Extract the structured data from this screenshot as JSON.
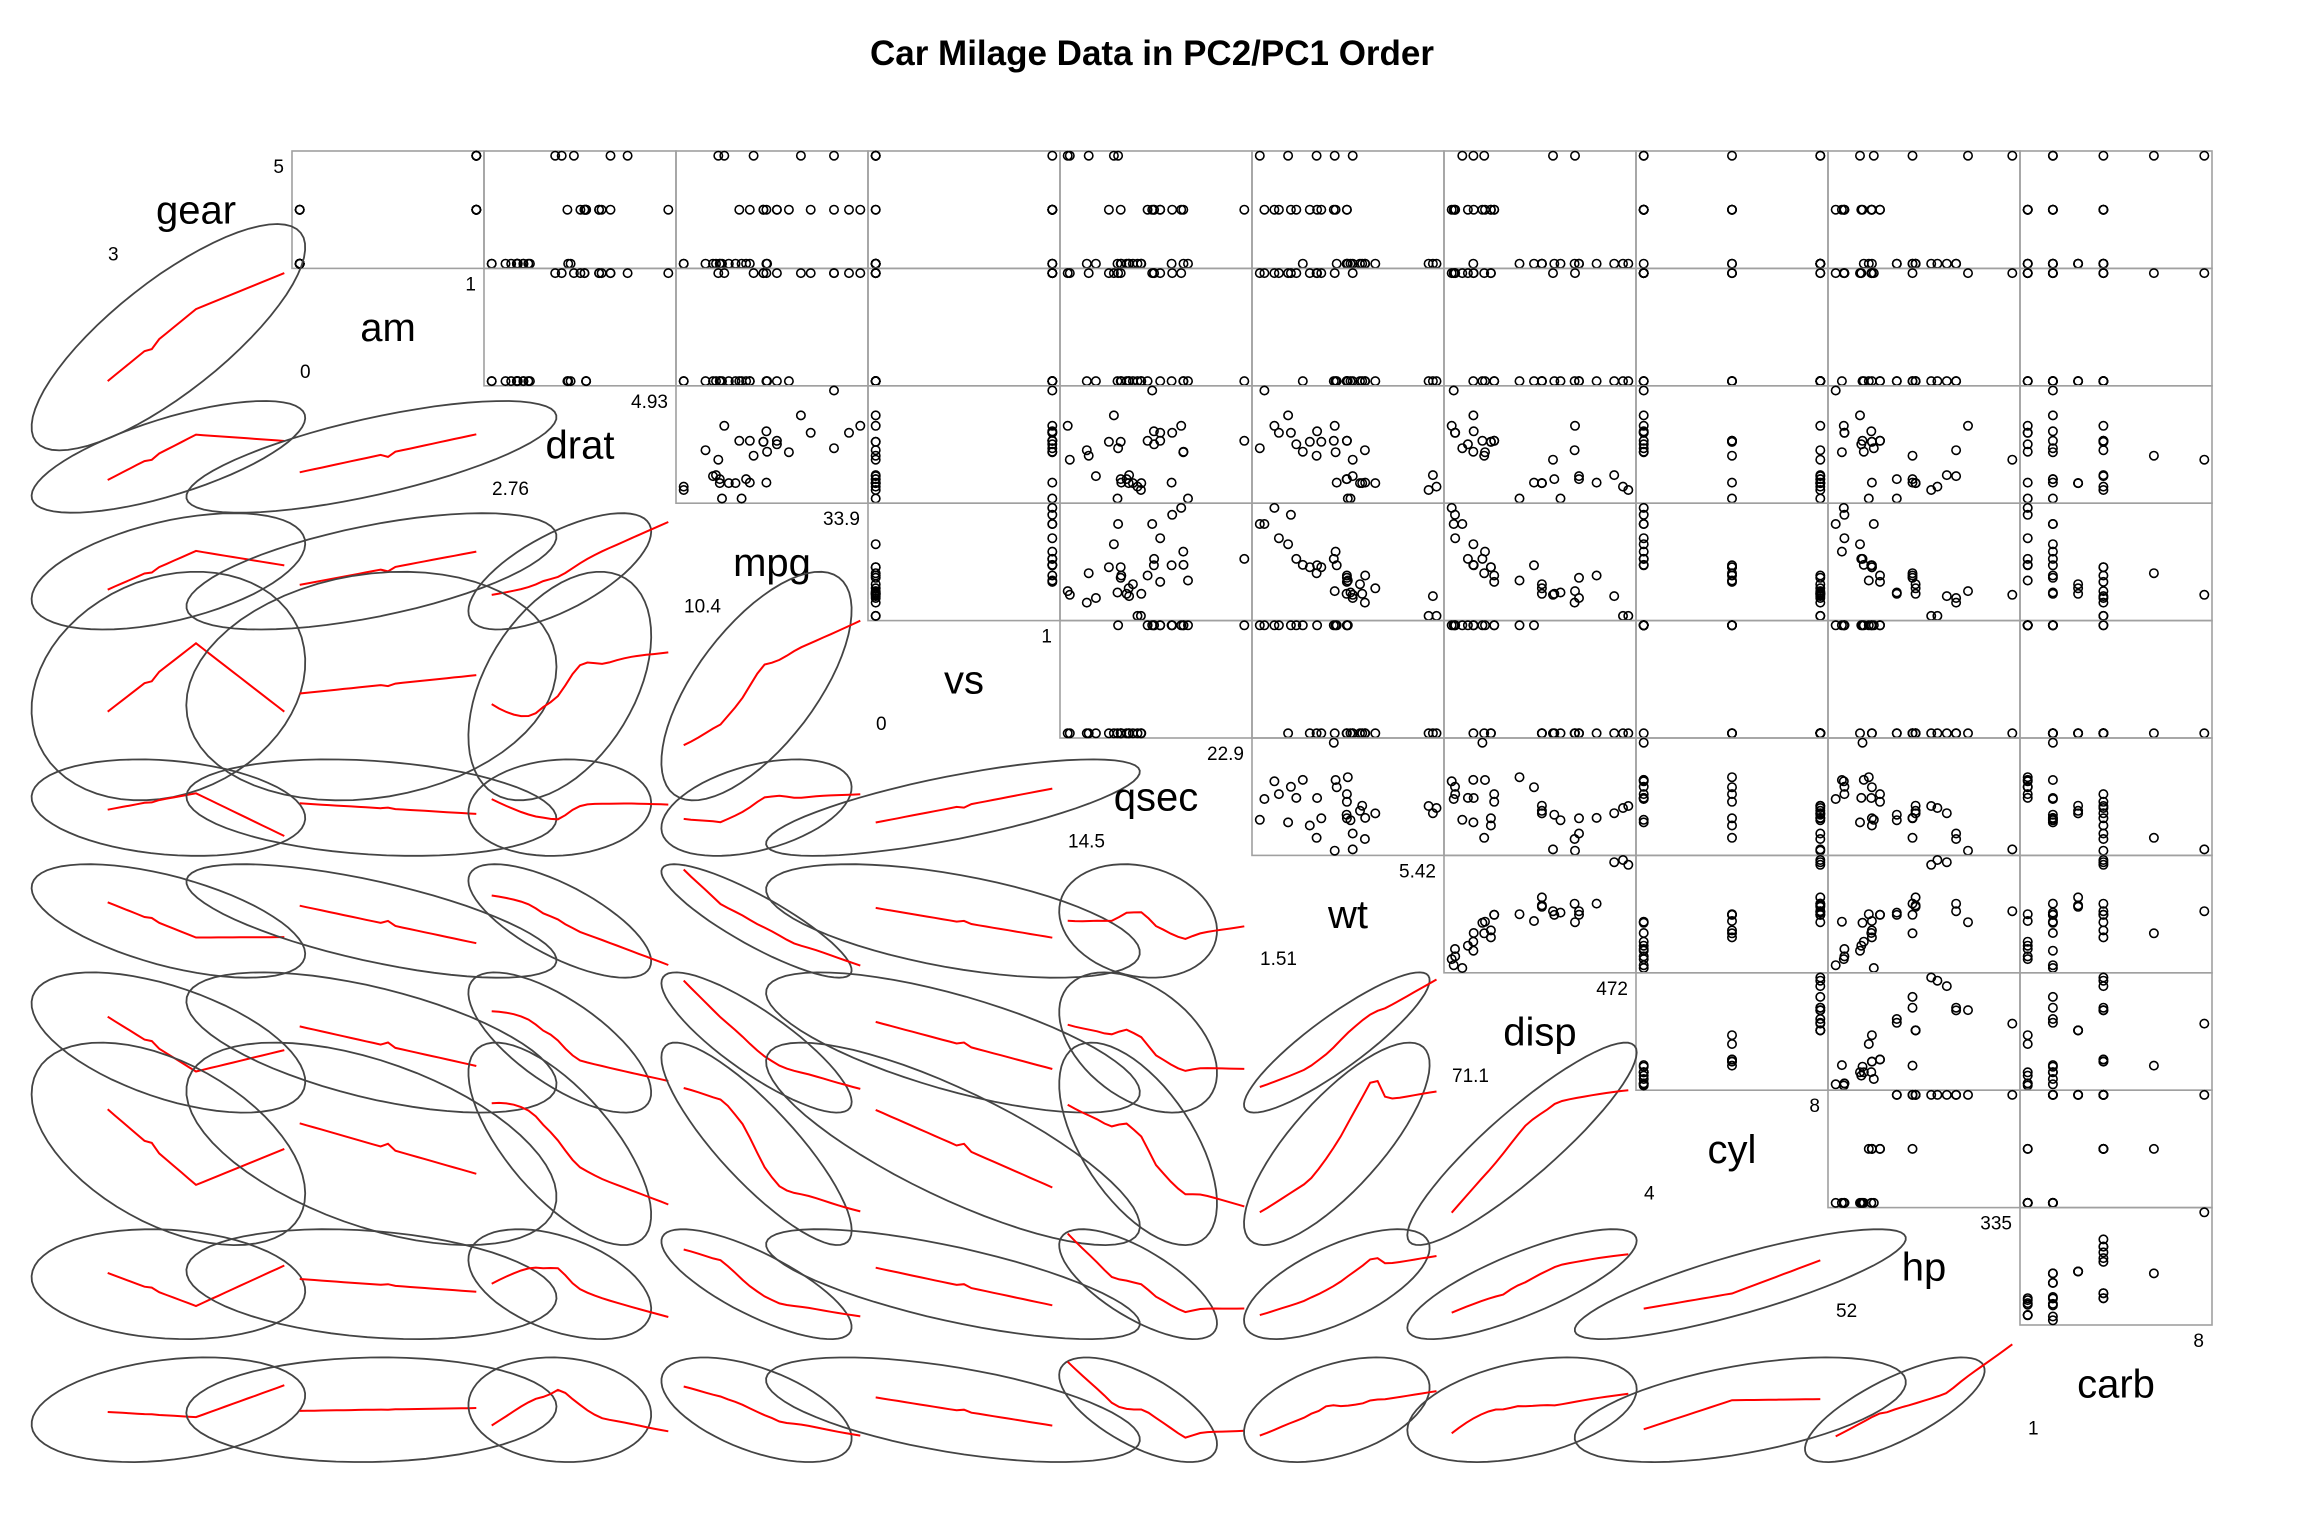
{
  "title": "Car Milage Data in PC2/PC1 Order",
  "colors": {
    "points": "#000000",
    "smooth": "#ff0000",
    "ellipse": "#444444",
    "panel_border": "#a0a0a0"
  },
  "chart_data": {
    "type": "scatter",
    "layout": "scatterplot-matrix",
    "upper_panels": "scatter points",
    "lower_panels": "data ellipse with loess smoother",
    "variables": [
      "gear",
      "am",
      "drat",
      "mpg",
      "vs",
      "qsec",
      "wt",
      "disp",
      "cyl",
      "hp",
      "carb"
    ],
    "ranges": {
      "gear": [
        3,
        5
      ],
      "am": [
        0,
        1
      ],
      "drat": [
        2.76,
        4.93
      ],
      "mpg": [
        10.4,
        33.9
      ],
      "vs": [
        0,
        1
      ],
      "qsec": [
        14.5,
        22.9
      ],
      "wt": [
        1.51,
        5.42
      ],
      "disp": [
        71.1,
        472
      ],
      "cyl": [
        4,
        8
      ],
      "hp": [
        52,
        335
      ],
      "carb": [
        1,
        8
      ]
    },
    "range_labels": {
      "gear": [
        "3",
        "5"
      ],
      "am": [
        "0",
        "1"
      ],
      "drat": [
        "2.76",
        "4.93"
      ],
      "mpg": [
        "10.4",
        "33.9"
      ],
      "vs": [
        "0",
        "1"
      ],
      "qsec": [
        "14.5",
        "22.9"
      ],
      "wt": [
        "1.51",
        "5.42"
      ],
      "disp": [
        "71.1",
        "472"
      ],
      "cyl": [
        "4",
        "8"
      ],
      "hp": [
        "52",
        "335"
      ],
      "carb": [
        "1",
        "8"
      ]
    },
    "data": {
      "mpg": [
        21.0,
        21.0,
        22.8,
        21.4,
        18.7,
        18.1,
        14.3,
        24.4,
        22.8,
        19.2,
        17.8,
        16.4,
        17.3,
        15.2,
        10.4,
        10.4,
        14.7,
        32.4,
        30.4,
        33.9,
        21.5,
        15.5,
        15.2,
        13.3,
        19.2,
        27.3,
        26.0,
        30.4,
        15.8,
        19.7,
        15.0,
        21.4
      ],
      "cyl": [
        6,
        6,
        4,
        6,
        8,
        6,
        8,
        4,
        4,
        6,
        6,
        8,
        8,
        8,
        8,
        8,
        8,
        4,
        4,
        4,
        4,
        8,
        8,
        8,
        8,
        4,
        4,
        4,
        8,
        6,
        8,
        4
      ],
      "disp": [
        160,
        160,
        108,
        258,
        360,
        225,
        360,
        146.7,
        140.8,
        167.6,
        167.6,
        275.8,
        275.8,
        275.8,
        472,
        460,
        440,
        78.7,
        75.7,
        71.1,
        120.1,
        318,
        304,
        350,
        400,
        79,
        120.3,
        95.1,
        351,
        145,
        301,
        121
      ],
      "hp": [
        110,
        110,
        93,
        110,
        175,
        105,
        245,
        62,
        95,
        123,
        123,
        180,
        180,
        180,
        205,
        215,
        230,
        66,
        52,
        65,
        97,
        150,
        150,
        245,
        175,
        66,
        91,
        113,
        264,
        175,
        335,
        109
      ],
      "drat": [
        3.9,
        3.9,
        3.85,
        3.08,
        3.15,
        2.76,
        3.21,
        3.69,
        3.92,
        3.92,
        3.92,
        3.07,
        3.07,
        3.07,
        2.93,
        3.0,
        3.23,
        4.08,
        4.93,
        4.22,
        3.7,
        2.76,
        3.15,
        3.73,
        3.08,
        4.08,
        4.43,
        3.77,
        4.22,
        3.62,
        3.54,
        4.11
      ],
      "wt": [
        2.62,
        2.875,
        2.32,
        3.215,
        3.44,
        3.46,
        3.57,
        3.19,
        3.15,
        3.44,
        3.44,
        4.07,
        3.73,
        3.78,
        5.25,
        5.424,
        5.345,
        2.2,
        1.615,
        1.835,
        2.465,
        3.52,
        3.435,
        3.84,
        3.845,
        1.935,
        2.14,
        1.513,
        3.17,
        2.77,
        3.57,
        2.78
      ],
      "qsec": [
        16.46,
        17.02,
        18.61,
        19.44,
        17.02,
        20.22,
        15.84,
        20.0,
        22.9,
        18.3,
        18.9,
        17.4,
        17.6,
        18.0,
        17.98,
        17.82,
        17.42,
        19.47,
        18.52,
        19.9,
        20.01,
        16.87,
        17.3,
        15.41,
        17.05,
        18.9,
        16.7,
        16.9,
        14.5,
        15.5,
        14.6,
        18.6
      ],
      "vs": [
        0,
        0,
        1,
        1,
        0,
        1,
        0,
        1,
        1,
        1,
        1,
        0,
        0,
        0,
        0,
        0,
        0,
        1,
        1,
        1,
        1,
        0,
        0,
        0,
        0,
        1,
        0,
        1,
        0,
        0,
        0,
        1
      ],
      "am": [
        1,
        1,
        1,
        0,
        0,
        0,
        0,
        0,
        0,
        0,
        0,
        0,
        0,
        0,
        0,
        0,
        0,
        1,
        1,
        1,
        0,
        0,
        0,
        0,
        0,
        1,
        1,
        1,
        1,
        1,
        1,
        1
      ],
      "gear": [
        4,
        4,
        4,
        3,
        3,
        3,
        3,
        4,
        4,
        4,
        4,
        3,
        3,
        3,
        3,
        3,
        3,
        4,
        4,
        4,
        3,
        3,
        3,
        3,
        3,
        4,
        5,
        5,
        5,
        5,
        5,
        4
      ],
      "carb": [
        4,
        4,
        1,
        1,
        2,
        1,
        4,
        2,
        2,
        4,
        4,
        3,
        3,
        3,
        4,
        4,
        4,
        1,
        2,
        1,
        1,
        2,
        2,
        4,
        2,
        1,
        2,
        2,
        4,
        6,
        8,
        2
      ]
    }
  }
}
